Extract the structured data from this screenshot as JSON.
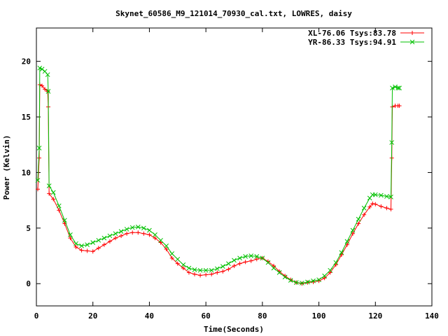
{
  "chart_data": {
    "type": "line",
    "title": "Skynet_60586_M9_121014_70930_cal.txt, LOWRES, daisy",
    "xlabel": "Time(Seconds)",
    "ylabel": "Power (Kelvin)",
    "xlim": [
      0,
      140
    ],
    "ylim": [
      -2,
      23
    ],
    "xticks": [
      0,
      20,
      40,
      60,
      80,
      100,
      120,
      140
    ],
    "yticks": [
      0,
      5,
      10,
      15,
      20
    ],
    "grid": false,
    "legend_position": "top-right",
    "series": [
      {
        "name": "XL-76.06 Tsys:83.78",
        "color": "#ff0000",
        "marker": "plus",
        "points": [
          [
            0.5,
            8.5
          ],
          [
            1.0,
            11.3
          ],
          [
            1.2,
            17.9
          ],
          [
            2.0,
            17.8
          ],
          [
            3.0,
            17.5
          ],
          [
            4.0,
            17.3
          ],
          [
            4.2,
            15.9
          ],
          [
            4.5,
            8.1
          ],
          [
            6,
            7.6
          ],
          [
            8,
            6.6
          ],
          [
            10,
            5.4
          ],
          [
            12,
            4.1
          ],
          [
            14,
            3.3
          ],
          [
            16,
            3.0
          ],
          [
            18,
            2.95
          ],
          [
            20,
            2.9
          ],
          [
            22,
            3.2
          ],
          [
            24,
            3.5
          ],
          [
            26,
            3.8
          ],
          [
            28,
            4.1
          ],
          [
            30,
            4.3
          ],
          [
            32,
            4.5
          ],
          [
            34,
            4.6
          ],
          [
            36,
            4.6
          ],
          [
            38,
            4.5
          ],
          [
            40,
            4.4
          ],
          [
            42,
            4.1
          ],
          [
            44,
            3.7
          ],
          [
            46,
            3.1
          ],
          [
            48,
            2.3
          ],
          [
            50,
            1.8
          ],
          [
            52,
            1.4
          ],
          [
            54,
            1.0
          ],
          [
            56,
            0.85
          ],
          [
            58,
            0.75
          ],
          [
            60,
            0.8
          ],
          [
            62,
            0.85
          ],
          [
            64,
            1.0
          ],
          [
            66,
            1.1
          ],
          [
            68,
            1.3
          ],
          [
            70,
            1.6
          ],
          [
            72,
            1.8
          ],
          [
            74,
            1.95
          ],
          [
            76,
            2.05
          ],
          [
            78,
            2.2
          ],
          [
            80,
            2.3
          ],
          [
            82,
            2.0
          ],
          [
            84,
            1.6
          ],
          [
            86,
            1.1
          ],
          [
            88,
            0.7
          ],
          [
            90,
            0.35
          ],
          [
            92,
            0.1
          ],
          [
            94,
            0.0
          ],
          [
            96,
            0.1
          ],
          [
            98,
            0.15
          ],
          [
            100,
            0.25
          ],
          [
            102,
            0.5
          ],
          [
            104,
            1.0
          ],
          [
            106,
            1.7
          ],
          [
            108,
            2.6
          ],
          [
            110,
            3.5
          ],
          [
            112,
            4.5
          ],
          [
            114,
            5.4
          ],
          [
            116,
            6.2
          ],
          [
            118,
            6.9
          ],
          [
            119,
            7.2
          ],
          [
            120,
            7.15
          ],
          [
            122,
            6.95
          ],
          [
            124,
            6.8
          ],
          [
            125.5,
            6.7
          ],
          [
            125.8,
            11.3
          ],
          [
            126,
            15.9
          ],
          [
            127,
            16.0
          ],
          [
            128,
            16.0
          ],
          [
            128.5,
            16.0
          ]
        ]
      },
      {
        "name": "YR-86.33 Tsys:94.91",
        "color": "#00c000",
        "marker": "cross",
        "points": [
          [
            0.5,
            9.3
          ],
          [
            1.0,
            12.2
          ],
          [
            1.2,
            19.4
          ],
          [
            2.0,
            19.3
          ],
          [
            3.0,
            19.1
          ],
          [
            4.0,
            18.8
          ],
          [
            4.2,
            17.3
          ],
          [
            4.5,
            8.8
          ],
          [
            6,
            8.2
          ],
          [
            8,
            7.0
          ],
          [
            10,
            5.7
          ],
          [
            12,
            4.4
          ],
          [
            14,
            3.6
          ],
          [
            16,
            3.4
          ],
          [
            18,
            3.5
          ],
          [
            20,
            3.7
          ],
          [
            22,
            3.9
          ],
          [
            24,
            4.1
          ],
          [
            26,
            4.3
          ],
          [
            28,
            4.5
          ],
          [
            30,
            4.7
          ],
          [
            32,
            4.9
          ],
          [
            34,
            5.05
          ],
          [
            36,
            5.1
          ],
          [
            38,
            5.0
          ],
          [
            40,
            4.8
          ],
          [
            42,
            4.4
          ],
          [
            44,
            3.9
          ],
          [
            46,
            3.4
          ],
          [
            48,
            2.7
          ],
          [
            50,
            2.2
          ],
          [
            52,
            1.7
          ],
          [
            54,
            1.4
          ],
          [
            56,
            1.25
          ],
          [
            58,
            1.2
          ],
          [
            60,
            1.2
          ],
          [
            62,
            1.2
          ],
          [
            64,
            1.35
          ],
          [
            66,
            1.55
          ],
          [
            68,
            1.8
          ],
          [
            70,
            2.1
          ],
          [
            72,
            2.3
          ],
          [
            74,
            2.45
          ],
          [
            76,
            2.5
          ],
          [
            78,
            2.45
          ],
          [
            80,
            2.3
          ],
          [
            82,
            1.9
          ],
          [
            84,
            1.4
          ],
          [
            86,
            1.0
          ],
          [
            88,
            0.6
          ],
          [
            90,
            0.3
          ],
          [
            92,
            0.1
          ],
          [
            94,
            0.05
          ],
          [
            96,
            0.15
          ],
          [
            98,
            0.25
          ],
          [
            100,
            0.35
          ],
          [
            102,
            0.7
          ],
          [
            104,
            1.2
          ],
          [
            106,
            1.9
          ],
          [
            108,
            2.8
          ],
          [
            110,
            3.8
          ],
          [
            112,
            4.8
          ],
          [
            114,
            5.8
          ],
          [
            116,
            6.8
          ],
          [
            118,
            7.7
          ],
          [
            119,
            8.0
          ],
          [
            120,
            8.0
          ],
          [
            122,
            7.95
          ],
          [
            124,
            7.85
          ],
          [
            125.5,
            7.8
          ],
          [
            125.8,
            12.7
          ],
          [
            126,
            17.6
          ],
          [
            127,
            17.7
          ],
          [
            128,
            17.6
          ],
          [
            128.5,
            17.6
          ]
        ]
      }
    ]
  }
}
